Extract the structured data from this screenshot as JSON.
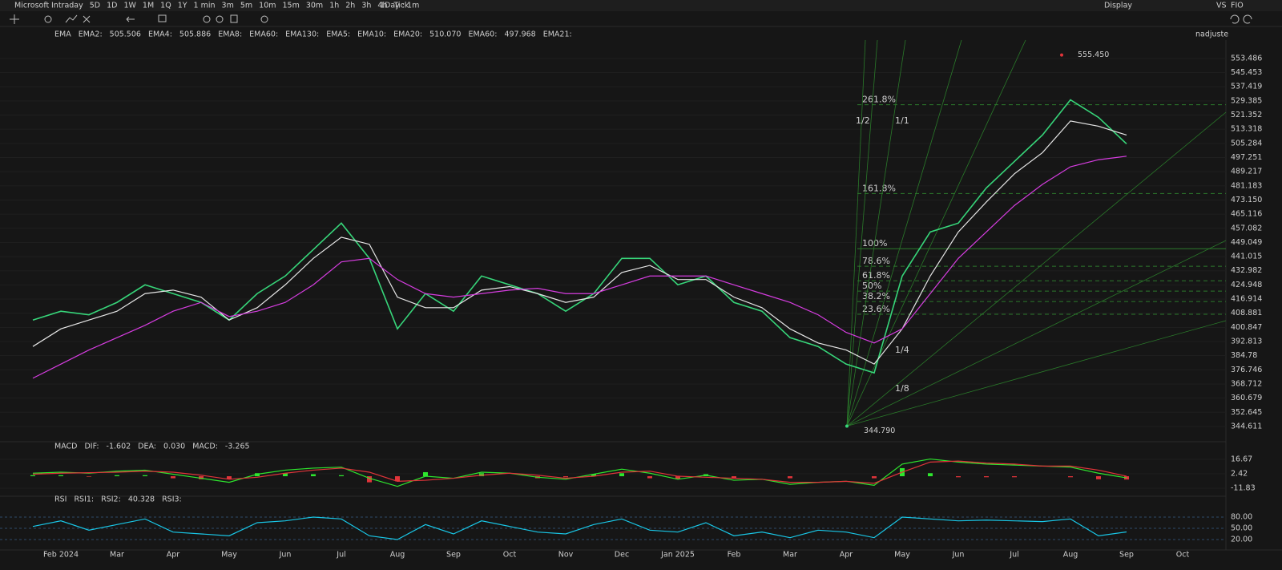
{
  "toolbar": {
    "symbol": "Microsoft",
    "periods": [
      "Intraday",
      "5D",
      "1D",
      "1W",
      "1M",
      "1Q",
      "1Y",
      "1 min",
      "3m",
      "5m",
      "10m",
      "15m",
      "30m",
      "1h",
      "2h",
      "3h",
      "4h",
      "Tick"
    ],
    "active_period_index": 2,
    "interval": "1Day : 1m",
    "display": "Display",
    "vs": "VS",
    "fio": "FIO",
    "adjust": "nadjuste"
  },
  "chart_data": [
    {
      "type": "line",
      "indicator": "EMA",
      "legend_items": [
        {
          "name": "EMA2:",
          "value": "505.506",
          "color": "#ff8c1a"
        },
        {
          "name": "EMA4:",
          "value": "505.886",
          "color": "#19c6e6"
        },
        {
          "name": "EMA8:",
          "color": "#d63de0"
        },
        {
          "name": "EMA60:",
          "color": "#3d8fe0"
        },
        {
          "name": "EMA130:",
          "color": "#2ecc40"
        },
        {
          "name": "EMA5:",
          "color": "#e0343a"
        },
        {
          "name": "EMA10:",
          "color": "#19c6e6"
        },
        {
          "name": "EMA20:",
          "value": "510.070",
          "color": "#e6e6e6"
        },
        {
          "name": "EMA60:",
          "value": "497.968",
          "color": "#d63de0"
        },
        {
          "name": "EMA21:",
          "color": "#d4c21a"
        }
      ],
      "categories": [
        null,
        "Feb 2024",
        null,
        "Mar",
        null,
        "Apr",
        null,
        "May",
        null,
        "Jun",
        null,
        "Jul",
        null,
        "Aug",
        null,
        "Sep",
        null,
        "Oct",
        null,
        "Nov",
        null,
        "Dec",
        null,
        "Jan 2025",
        null,
        "Feb",
        null,
        "Mar",
        null,
        "Apr",
        null,
        "May",
        null,
        "Jun",
        null,
        "Jul",
        null,
        "Aug",
        null,
        "Sep",
        null,
        "Oct"
      ],
      "series": [
        {
          "color": "#37d67a",
          "values": [
            405,
            410,
            408,
            415,
            425,
            420,
            415,
            405,
            420,
            430,
            445,
            460,
            440,
            400,
            420,
            410,
            430,
            425,
            420,
            410,
            420,
            440,
            440,
            425,
            430,
            415,
            410,
            395,
            390,
            380,
            375,
            430,
            455,
            460,
            480,
            495,
            510,
            530,
            520,
            505,
            null,
            null
          ]
        },
        {
          "color": "#e6e6e6",
          "values": [
            390,
            400,
            405,
            410,
            420,
            422,
            418,
            405,
            412,
            425,
            440,
            452,
            448,
            418,
            412,
            412,
            422,
            424,
            420,
            415,
            418,
            432,
            436,
            428,
            428,
            418,
            412,
            400,
            392,
            388,
            380,
            400,
            430,
            455,
            472,
            488,
            500,
            518,
            515,
            510,
            null,
            null
          ]
        },
        {
          "color": "#d63de0",
          "values": [
            372,
            380,
            388,
            395,
            402,
            410,
            415,
            407,
            410,
            415,
            425,
            438,
            440,
            428,
            420,
            418,
            420,
            422,
            423,
            420,
            420,
            425,
            430,
            430,
            430,
            425,
            420,
            415,
            408,
            398,
            392,
            400,
            420,
            440,
            455,
            470,
            482,
            492,
            496,
            498,
            null,
            null
          ]
        }
      ],
      "ylim": [
        337.3,
        563.9
      ],
      "yticks": [
        553.486,
        545.453,
        537.419,
        529.385,
        521.352,
        513.318,
        505.284,
        497.251,
        489.217,
        481.183,
        {
          "value": 473.15,
          "label": "473.150"
        },
        465.116,
        457.082,
        449.049,
        441.015,
        432.982,
        424.948,
        416.914,
        408.881,
        400.847,
        392.813,
        384.78,
        376.746,
        368.712,
        360.679,
        352.645,
        344.611
      ],
      "fib_levels": [
        {
          "label": "261.8%",
          "value": 527.2
        },
        {
          "label": "161.8%",
          "value": 476.8
        },
        {
          "label": "100%",
          "value": 445.5
        },
        {
          "label": "78.6%",
          "value": 435.5
        },
        {
          "label": "61.8%",
          "value": 427.3
        },
        {
          "label": "50%",
          "value": 421.4
        },
        {
          "label": "38.2%",
          "value": 415.5
        },
        {
          "label": "23.6%",
          "value": 408.3
        }
      ],
      "gann_labels": [
        "1/2",
        "1/1",
        "1/4",
        "1/8"
      ],
      "high": {
        "value": 555.45,
        "label": "555.450"
      },
      "low": {
        "value": 344.79,
        "label": "344.790"
      }
    },
    {
      "type": "macd",
      "indicator": "MACD",
      "legend_items": [
        {
          "name": "DIF:",
          "value": "-1.602",
          "color": "#2ee62e"
        },
        {
          "name": "DEA:",
          "value": "0.030",
          "color": "#e0343a"
        },
        {
          "name": "MACD:",
          "value": "-3.265",
          "color": "#d63de0"
        }
      ],
      "series": [
        {
          "color": "#2ee62e",
          "values": [
            3,
            4,
            3,
            5,
            6,
            2,
            -2,
            -6,
            2,
            6,
            8,
            9,
            -2,
            -10,
            0,
            -2,
            4,
            3,
            -1,
            -3,
            2,
            7,
            3,
            -3,
            1,
            -4,
            -3,
            -8,
            -6,
            -5,
            -9,
            12,
            17,
            14,
            12,
            11,
            10,
            9,
            3,
            -1.602,
            null,
            null
          ]
        },
        {
          "color": "#e0343a",
          "values": [
            2,
            3,
            3.5,
            4,
            5,
            4,
            1,
            -3,
            -1,
            3,
            6,
            8,
            4,
            -5,
            -4,
            -2,
            1,
            3,
            1,
            -2,
            0,
            4,
            5,
            0,
            -1,
            -2,
            -3,
            -6,
            -6,
            -5,
            -7,
            4,
            14,
            15,
            13,
            12,
            10,
            10,
            6,
            0.03,
            null,
            null
          ]
        }
      ],
      "bars": [
        1,
        1,
        -0.5,
        1,
        1,
        -2,
        -3,
        -3,
        3,
        3,
        2,
        1,
        -6,
        -5,
        4,
        0,
        3,
        0,
        -2,
        -1,
        2,
        3,
        -2,
        -3,
        2,
        -2,
        0,
        -2,
        0,
        0,
        -2,
        8,
        3,
        -1,
        -1,
        -1,
        0,
        -1,
        -3,
        -3.265,
        null,
        null
      ],
      "bar_colors": {
        "up": "#2ee62e",
        "down": "#e0343a"
      },
      "ylim": [
        -18.2,
        23
      ],
      "yticks": [
        16.67,
        2.42,
        -11.83
      ]
    },
    {
      "type": "rsi",
      "indicator": "RSI",
      "legend_items": [
        {
          "name": "RSI1:",
          "color": "#e0343a"
        },
        {
          "name": "RSI2:",
          "value": "40.328",
          "color": "#19c6e6"
        },
        {
          "name": "RSI3:",
          "color": "#bbbbbb"
        }
      ],
      "series": [
        {
          "color": "#19c6e6",
          "values": [
            55,
            70,
            45,
            60,
            75,
            40,
            35,
            30,
            65,
            70,
            80,
            75,
            30,
            20,
            60,
            35,
            70,
            55,
            40,
            35,
            60,
            75,
            45,
            40,
            65,
            30,
            40,
            25,
            45,
            40,
            25,
            80,
            75,
            70,
            72,
            70,
            68,
            75,
            30,
            40.328,
            null,
            null
          ]
        }
      ],
      "ylim": [
        -5.7,
        105.7
      ],
      "yticks": [
        {
          "value": 80,
          "label": "80.00"
        },
        {
          "value": 50,
          "label": "50.00"
        },
        {
          "value": 20,
          "label": "20.00"
        }
      ]
    }
  ]
}
